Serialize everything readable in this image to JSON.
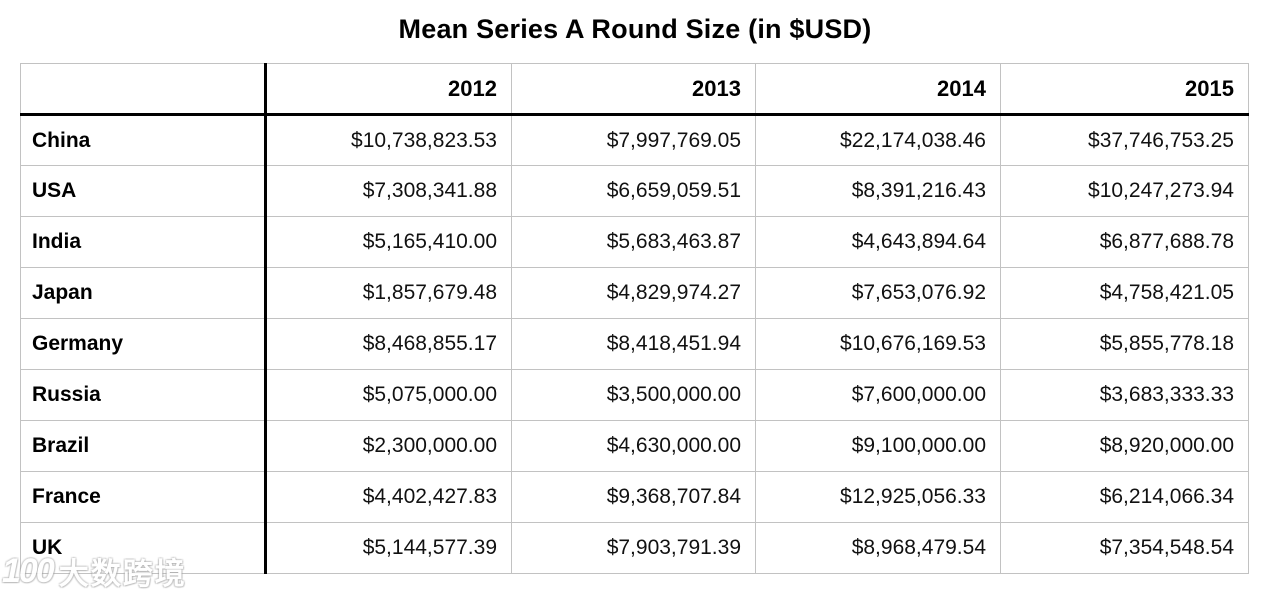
{
  "title": "Mean Series A Round Size (in $USD)",
  "watermark": {
    "logo": "100",
    "text": "大数跨境"
  },
  "colors": {
    "background": "#ffffff",
    "text": "#000000",
    "thick_rule": "#000000",
    "thin_rule": "#c2c2c2"
  },
  "chart_data": {
    "type": "table",
    "title": "Mean Series A Round Size (in $USD)",
    "columns": [
      "",
      "2012",
      "2013",
      "2014",
      "2015"
    ],
    "rows": [
      {
        "label": "China",
        "values": [
          "$10,738,823.53",
          "$7,997,769.05",
          "$22,174,038.46",
          "$37,746,753.25"
        ]
      },
      {
        "label": "USA",
        "values": [
          "$7,308,341.88",
          "$6,659,059.51",
          "$8,391,216.43",
          "$10,247,273.94"
        ]
      },
      {
        "label": "India",
        "values": [
          "$5,165,410.00",
          "$5,683,463.87",
          "$4,643,894.64",
          "$6,877,688.78"
        ]
      },
      {
        "label": "Japan",
        "values": [
          "$1,857,679.48",
          "$4,829,974.27",
          "$7,653,076.92",
          "$4,758,421.05"
        ]
      },
      {
        "label": "Germany",
        "values": [
          "$8,468,855.17",
          "$8,418,451.94",
          "$10,676,169.53",
          "$5,855,778.18"
        ]
      },
      {
        "label": "Russia",
        "values": [
          "$5,075,000.00",
          "$3,500,000.00",
          "$7,600,000.00",
          "$3,683,333.33"
        ]
      },
      {
        "label": "Brazil",
        "values": [
          "$2,300,000.00",
          "$4,630,000.00",
          "$9,100,000.00",
          "$8,920,000.00"
        ]
      },
      {
        "label": "France",
        "values": [
          "$4,402,427.83",
          "$9,368,707.84",
          "$12,925,056.33",
          "$6,214,066.34"
        ]
      },
      {
        "label": "UK",
        "values": [
          "$5,144,577.39",
          "$7,903,791.39",
          "$8,968,479.54",
          "$7,354,548.54"
        ]
      }
    ],
    "series": [
      {
        "name": "China",
        "values": [
          10738823.53,
          7997769.05,
          22174038.46,
          37746753.25
        ]
      },
      {
        "name": "USA",
        "values": [
          7308341.88,
          6659059.51,
          8391216.43,
          10247273.94
        ]
      },
      {
        "name": "India",
        "values": [
          5165410.0,
          5683463.87,
          4643894.64,
          6877688.78
        ]
      },
      {
        "name": "Japan",
        "values": [
          1857679.48,
          4829974.27,
          7653076.92,
          4758421.05
        ]
      },
      {
        "name": "Germany",
        "values": [
          8468855.17,
          8418451.94,
          10676169.53,
          5855778.18
        ]
      },
      {
        "name": "Russia",
        "values": [
          5075000.0,
          3500000.0,
          7600000.0,
          3683333.33
        ]
      },
      {
        "name": "Brazil",
        "values": [
          2300000.0,
          4630000.0,
          9100000.0,
          8920000.0
        ]
      },
      {
        "name": "France",
        "values": [
          4402427.83,
          9368707.84,
          12925056.33,
          6214066.34
        ]
      },
      {
        "name": "UK",
        "values": [
          5144577.39,
          7903791.39,
          8968479.54,
          7354548.54
        ]
      }
    ],
    "x": [
      "2012",
      "2013",
      "2014",
      "2015"
    ]
  }
}
